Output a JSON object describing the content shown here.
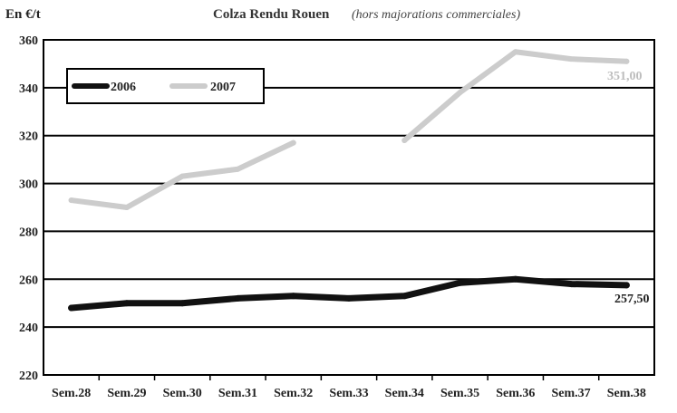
{
  "chart_data": {
    "type": "line",
    "title": "Colza Rendu Rouen",
    "subtitle": "(hors majorations commerciales)",
    "ylabel": "En €/t",
    "xlabel": "",
    "categories": [
      "Sem.28",
      "Sem.29",
      "Sem.30",
      "Sem.31",
      "Sem.32",
      "Sem.33",
      "Sem.34",
      "Sem.35",
      "Sem.36",
      "Sem.37",
      "Sem.38"
    ],
    "ylim": [
      220,
      360
    ],
    "yticks": [
      220,
      240,
      260,
      280,
      300,
      320,
      340,
      360
    ],
    "grid": true,
    "legend_position": "top-left",
    "series": [
      {
        "name": "2006",
        "color": "#111111",
        "values": [
          248,
          250,
          250,
          252,
          253,
          252,
          253,
          258.5,
          260,
          258,
          257.5
        ],
        "end_label": "257,50"
      },
      {
        "name": "2007",
        "color": "#cccccc",
        "values": [
          293,
          290,
          303,
          306,
          317,
          null,
          318,
          338,
          355,
          352,
          351
        ],
        "end_label": "351,00"
      }
    ]
  }
}
